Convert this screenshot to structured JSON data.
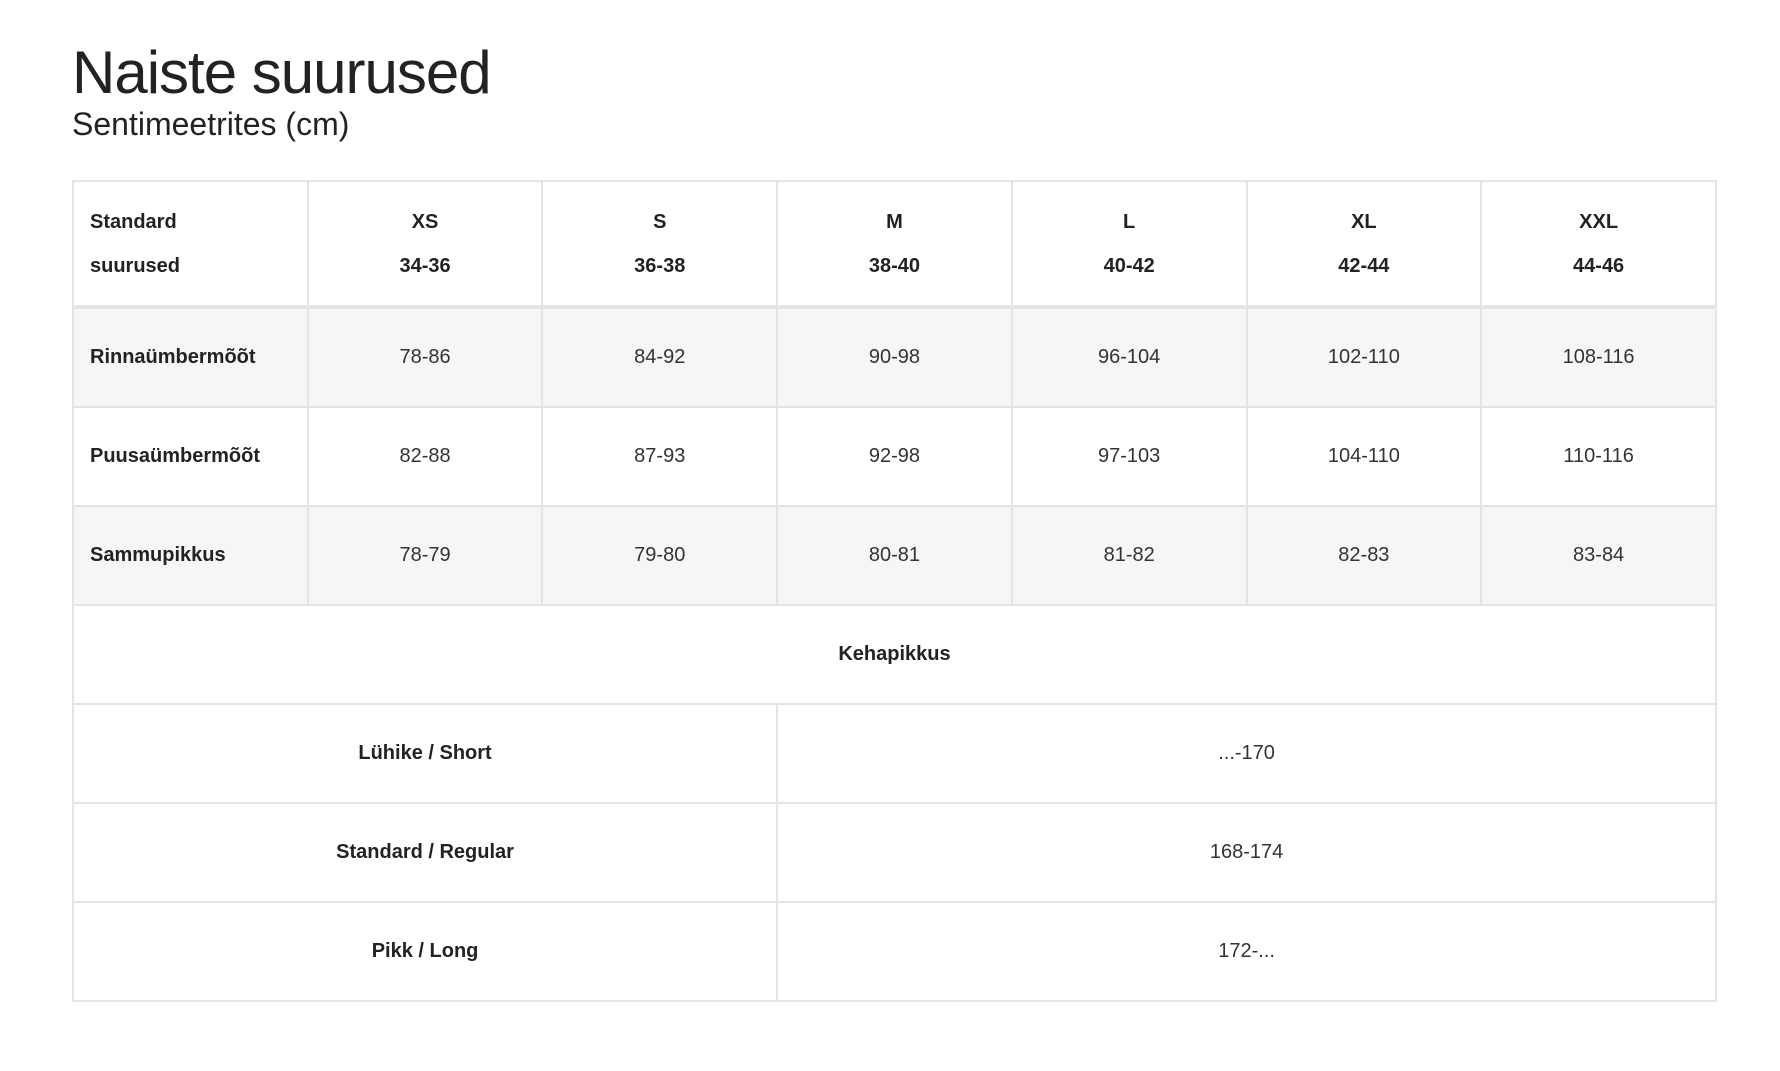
{
  "title": "Naiste suurused",
  "subtitle": "Sentimeetrites (cm)",
  "table": {
    "header": {
      "label_line1": "Standard",
      "label_line2": "suurused",
      "sizes": [
        {
          "name": "XS",
          "range": "34-36"
        },
        {
          "name": "S",
          "range": "36-38"
        },
        {
          "name": "M",
          "range": "38-40"
        },
        {
          "name": "L",
          "range": "40-42"
        },
        {
          "name": "XL",
          "range": "42-44"
        },
        {
          "name": "XXL",
          "range": "44-46"
        }
      ]
    },
    "rows": [
      {
        "label": "Rinnaümbermõõt",
        "values": [
          "78-86",
          "84-92",
          "90-98",
          "96-104",
          "102-110",
          "108-116"
        ]
      },
      {
        "label": "Puusaümbermõõt",
        "values": [
          "82-88",
          "87-93",
          "92-98",
          "97-103",
          "104-110",
          "110-116"
        ]
      },
      {
        "label": "Sammupikkus",
        "values": [
          "78-79",
          "79-80",
          "80-81",
          "81-82",
          "82-83",
          "83-84"
        ]
      }
    ],
    "length_section": {
      "title": "Kehapikkus",
      "rows": [
        {
          "label": "Lühike / Short",
          "value": "...-170"
        },
        {
          "label": "Standard / Regular",
          "value": "168-174"
        },
        {
          "label": "Pikk / Long",
          "value": "172-..."
        }
      ]
    }
  }
}
